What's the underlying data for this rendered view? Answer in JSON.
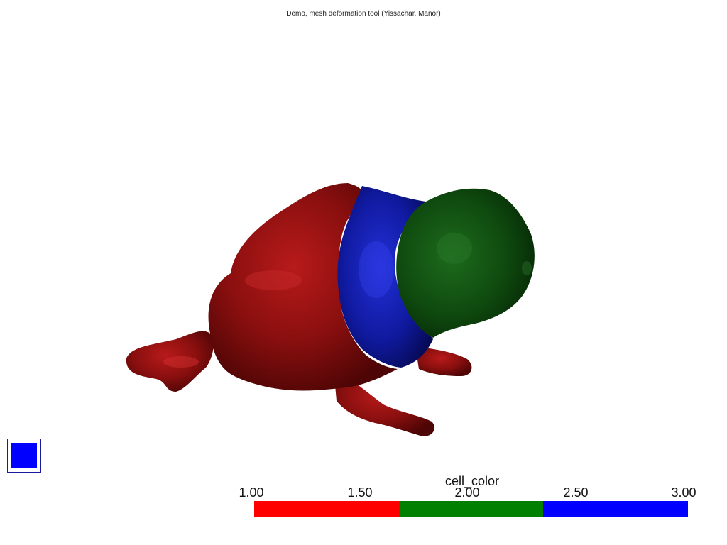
{
  "window": {
    "title": "Demo, mesh deformation tool (Yissachar, Manor)"
  },
  "viewport": {
    "object": "frog-mesh",
    "regions": [
      {
        "name": "body",
        "cell_color": 1,
        "color": "#8b0f0f"
      },
      {
        "name": "neck",
        "cell_color": 3,
        "color": "#0e1196"
      },
      {
        "name": "head",
        "cell_color": 2,
        "color": "#0d4a0d"
      }
    ]
  },
  "toggle": {
    "color": "#0000ff",
    "state": "on"
  },
  "scalar_bar": {
    "title": "cell_color",
    "ticks": [
      "1.00",
      "1.50",
      "2.00",
      "2.50",
      "3.00"
    ],
    "segments": [
      {
        "value": 1,
        "color": "#ff0000"
      },
      {
        "value": 2,
        "color": "#008000"
      },
      {
        "value": 3,
        "color": "#0000ff"
      }
    ]
  }
}
